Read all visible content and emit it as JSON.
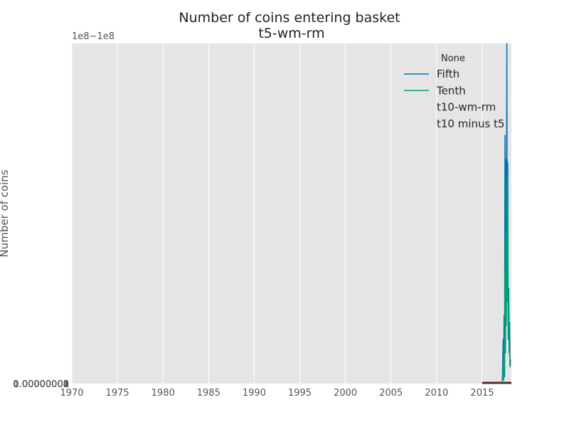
{
  "chart_data": {
    "type": "line",
    "title": "Number of coins entering basket",
    "subtitle": "t5-wm-rm",
    "xlabel": "",
    "ylabel": "Number of coins",
    "y_offset_label": "1e8−1e8",
    "x_ticks": [
      "1970",
      "1975",
      "1980",
      "1985",
      "1990",
      "1995",
      "2000",
      "2005",
      "2010",
      "2015"
    ],
    "y_tick_labels": [
      "1.00000000",
      "0.00000001",
      "0.00000002",
      "0.00000003",
      "0.00000004"
    ],
    "xlim": [
      1970,
      2018.2
    ],
    "ylim": [
      0,
      1
    ],
    "grid": true,
    "background": "#e5e5e5",
    "legend": {
      "placement": "top-right",
      "title": "None",
      "entries": [
        {
          "label": "Fifth",
          "color": "#0072b2",
          "has_line": true
        },
        {
          "label": "Tenth",
          "color": "#009e73",
          "has_line": true
        },
        {
          "label": "t10-wm-rm",
          "color": "",
          "has_line": false
        },
        {
          "label": "t10 minus t5",
          "color": "",
          "has_line": false
        }
      ]
    },
    "series": [
      {
        "name": "Fifth",
        "color": "#0072b2",
        "x": [
          2017.2,
          2017.3,
          2017.35,
          2017.4,
          2017.45,
          2017.5,
          2017.55,
          2017.6,
          2017.65,
          2017.7,
          2017.75,
          2017.8,
          2017.85,
          2017.9,
          2017.95,
          2018.0,
          2018.05,
          2018.1
        ],
        "y": [
          0.005,
          0.13,
          0.01,
          0.2,
          0.02,
          0.73,
          0.12,
          0.66,
          0.33,
          1.0,
          0.35,
          0.65,
          0.2,
          0.28,
          0.11,
          0.18,
          0.05,
          0.07
        ]
      },
      {
        "name": "Tenth",
        "color": "#009e73",
        "x": [
          2017.2,
          2017.3,
          2017.35,
          2017.4,
          2017.45,
          2017.5,
          2017.55,
          2017.6,
          2017.65,
          2017.7,
          2017.75,
          2017.8,
          2017.85,
          2017.9,
          2017.95,
          2018.0,
          2018.05,
          2018.1
        ],
        "y": [
          0.003,
          0.06,
          0.02,
          0.1,
          0.04,
          0.33,
          0.09,
          0.45,
          0.17,
          0.6,
          0.24,
          0.52,
          0.13,
          0.25,
          0.09,
          0.1,
          0.05,
          0.06
        ]
      }
    ]
  }
}
